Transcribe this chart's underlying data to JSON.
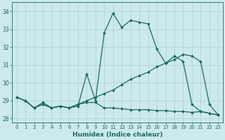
{
  "xlabel": "Humidex (Indice chaleur)",
  "xlim": [
    -0.5,
    23.5
  ],
  "ylim": [
    27.8,
    34.5
  ],
  "yticks": [
    28,
    29,
    30,
    31,
    32,
    33,
    34
  ],
  "xticks": [
    0,
    1,
    2,
    3,
    4,
    5,
    6,
    7,
    8,
    9,
    10,
    11,
    12,
    13,
    14,
    15,
    16,
    17,
    18,
    19,
    20,
    21,
    22,
    23
  ],
  "background_color": "#cce9ec",
  "grid_color": "#b0d4d8",
  "line_color": "#1a6b61",
  "line1": [
    29.2,
    29.0,
    28.6,
    28.9,
    28.6,
    28.7,
    28.6,
    28.7,
    30.5,
    29.0,
    32.8,
    33.9,
    33.1,
    33.5,
    33.4,
    33.3,
    31.9,
    31.1,
    31.5,
    31.2,
    28.8,
    28.4,
    28.3,
    28.2
  ],
  "line2": [
    29.2,
    29.0,
    28.6,
    28.8,
    28.6,
    28.7,
    28.6,
    28.8,
    29.0,
    29.2,
    29.4,
    29.6,
    29.9,
    30.2,
    30.4,
    30.6,
    30.9,
    31.1,
    31.3,
    31.6,
    31.5,
    31.2,
    28.8,
    28.2
  ],
  "line3": [
    29.2,
    29.0,
    28.6,
    28.8,
    28.6,
    28.7,
    28.6,
    28.8,
    28.9,
    28.9,
    28.6,
    28.6,
    28.55,
    28.5,
    28.5,
    28.5,
    28.45,
    28.45,
    28.4,
    28.4,
    28.35,
    28.4,
    28.3,
    28.2
  ]
}
